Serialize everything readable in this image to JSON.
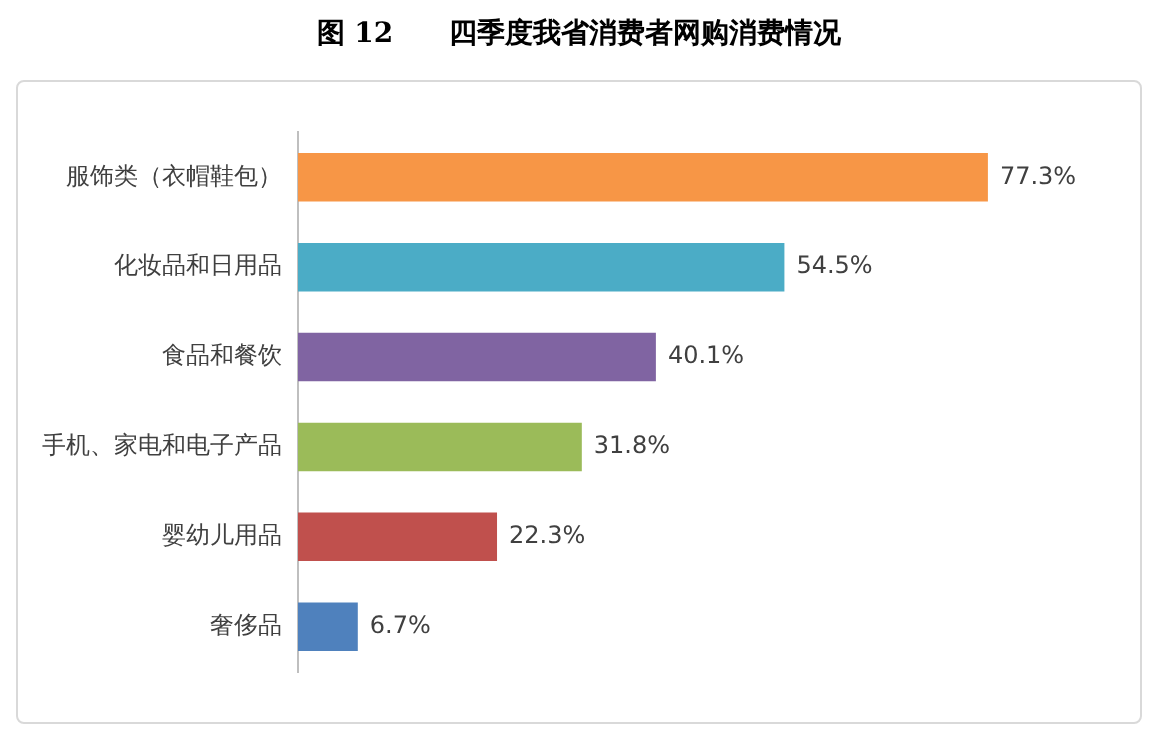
{
  "chart_data": {
    "type": "bar",
    "orientation": "horizontal",
    "title": "图 12　　四季度我省消费者网购消费情况",
    "categories": [
      "服饰类（衣帽鞋包）",
      "化妆品和日用品",
      "食品和餐饮",
      "手机、家电和电子产品",
      "婴幼儿用品",
      "奢侈品"
    ],
    "values": [
      77.3,
      54.5,
      40.1,
      31.8,
      22.3,
      6.7
    ],
    "colors": [
      "#f79646",
      "#4bacc6",
      "#8064a2",
      "#9bbb59",
      "#c0504d",
      "#4f81bd"
    ],
    "value_labels": [
      "77.3%",
      "54.5%",
      "40.1%",
      "31.8%",
      "22.3%",
      "6.7%"
    ],
    "legend": false
  }
}
